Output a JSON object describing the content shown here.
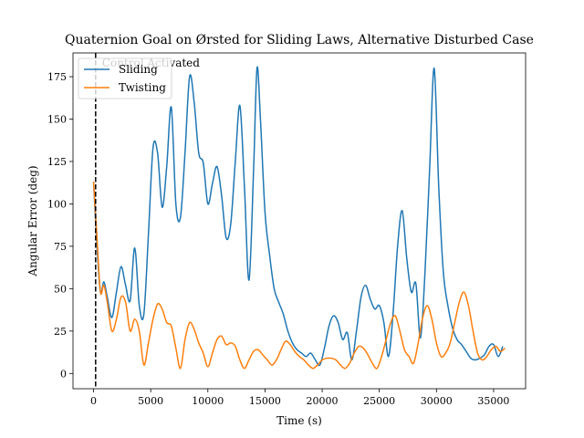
{
  "chart_data": {
    "type": "line",
    "title": "Quaternion Goal on Ørsted for Sliding Laws, Alternative Disturbed Case",
    "xlabel": "Time (s)",
    "ylabel": "Angular Error (deg)",
    "xlim": [
      -1800,
      37800
    ],
    "ylim": [
      -9,
      189
    ],
    "xticks": [
      0,
      5000,
      10000,
      15000,
      20000,
      25000,
      30000,
      35000
    ],
    "yticks": [
      0,
      25,
      50,
      75,
      100,
      125,
      150,
      175
    ],
    "legend_position": "top-left",
    "annotation": {
      "text": "Control Activated",
      "x": 180,
      "line_style": "dashed",
      "line_color": "#000000"
    },
    "series": [
      {
        "name": "Sliding",
        "color": "#1f77b4",
        "x": [
          0,
          300,
          600,
          900,
          1200,
          1600,
          2000,
          2400,
          2800,
          3200,
          3600,
          4000,
          4400,
          4800,
          5200,
          5600,
          6000,
          6400,
          6800,
          7200,
          7600,
          8000,
          8400,
          8800,
          9200,
          9600,
          10000,
          10400,
          10800,
          11200,
          11600,
          12000,
          12400,
          12800,
          13200,
          13600,
          14000,
          14300,
          14600,
          15000,
          15400,
          15800,
          16200,
          16600,
          17000,
          17400,
          17800,
          18200,
          18600,
          19000,
          19400,
          19800,
          20200,
          20600,
          21000,
          21400,
          21800,
          22200,
          22600,
          23000,
          23400,
          23800,
          24200,
          24600,
          25000,
          25400,
          25800,
          26200,
          26600,
          27000,
          27400,
          27800,
          28200,
          28600,
          29000,
          29400,
          29800,
          30200,
          30600,
          31000,
          31400,
          31800,
          32200,
          32600,
          33000,
          33400,
          33800,
          34200,
          34600,
          35000,
          35400,
          35800
        ],
        "y": [
          113,
          75,
          48,
          54,
          45,
          33,
          48,
          63,
          52,
          43,
          74,
          40,
          35,
          82,
          133,
          130,
          98,
          122,
          157,
          100,
          92,
          130,
          175,
          160,
          130,
          124,
          100,
          112,
          122,
          105,
          80,
          88,
          125,
          158,
          110,
          55,
          120,
          180,
          150,
          95,
          70,
          50,
          42,
          35,
          25,
          18,
          14,
          12,
          10,
          12,
          8,
          5,
          15,
          28,
          34,
          30,
          20,
          24,
          8,
          25,
          45,
          52,
          44,
          38,
          40,
          30,
          10,
          35,
          75,
          96,
          68,
          48,
          53,
          21,
          60,
          120,
          180,
          110,
          60,
          40,
          27,
          20,
          17,
          13,
          9,
          8,
          9,
          11,
          16,
          17,
          10,
          16
        ]
      },
      {
        "name": "Twisting",
        "color": "#ff7f0e",
        "x": [
          0,
          300,
          600,
          900,
          1200,
          1600,
          2000,
          2400,
          2800,
          3200,
          3600,
          4000,
          4400,
          4800,
          5200,
          5600,
          6000,
          6400,
          6800,
          7200,
          7600,
          8000,
          8400,
          8800,
          9200,
          9600,
          10000,
          10400,
          10800,
          11200,
          11600,
          12000,
          12400,
          12800,
          13200,
          13600,
          14000,
          14400,
          14800,
          15200,
          15600,
          16000,
          16400,
          16800,
          17200,
          17600,
          18000,
          18400,
          18800,
          19200,
          19600,
          20000,
          20400,
          20800,
          21200,
          21600,
          22000,
          22400,
          22800,
          23200,
          23600,
          24000,
          24400,
          24800,
          25200,
          25600,
          26000,
          26400,
          26800,
          27200,
          27600,
          28000,
          28400,
          28800,
          29200,
          29600,
          30000,
          30400,
          30800,
          31200,
          31600,
          32000,
          32400,
          32800,
          33200,
          33600,
          34000,
          34400,
          34800,
          35200,
          35600,
          36000
        ],
        "y": [
          113,
          80,
          48,
          52,
          42,
          25,
          32,
          45,
          42,
          25,
          32,
          25,
          5,
          18,
          32,
          41,
          38,
          30,
          28,
          15,
          3,
          20,
          30,
          26,
          18,
          12,
          4,
          12,
          20,
          22,
          17,
          18,
          16,
          8,
          3,
          8,
          13,
          14,
          11,
          8,
          5,
          8,
          14,
          19,
          17,
          13,
          10,
          8,
          5,
          3,
          5,
          8,
          9,
          9,
          8,
          5,
          3,
          6,
          12,
          16,
          15,
          11,
          6,
          3,
          10,
          20,
          30,
          34,
          25,
          14,
          10,
          6,
          18,
          33,
          40,
          32,
          18,
          10,
          12,
          18,
          30,
          42,
          48,
          40,
          25,
          12,
          8,
          10,
          14,
          16,
          13,
          15
        ]
      }
    ]
  }
}
